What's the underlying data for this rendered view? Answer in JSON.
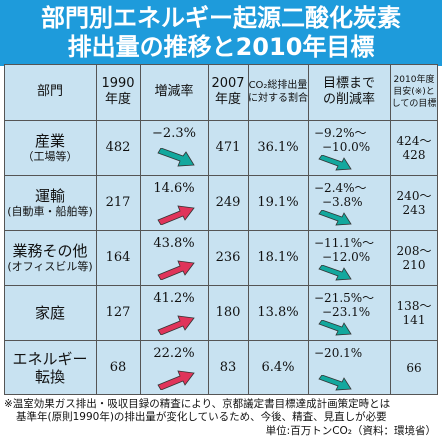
{
  "title": {
    "line1": "部門別エネルギー起源二酸化炭素",
    "line2": "排出量の推移と2010年目標"
  },
  "headers": {
    "sector": "部門",
    "y1990_a": "1990",
    "y1990_b": "年度",
    "change": "増減率",
    "y2007_a": "2007",
    "y2007_b": "年度",
    "share_a": "CO₂総排出量",
    "share_b": "に対する割合",
    "reduction_a": "目標まで",
    "reduction_b": "の削減率",
    "goal_a": "2010年度",
    "goal_b": "目安(※)と",
    "goal_c": "しての目標"
  },
  "rows": [
    {
      "sector": "産業",
      "sub": "（工場等）",
      "v1990": "482",
      "change": "−2.3%",
      "dir": "down",
      "v2007": "471",
      "share": "36.1%",
      "target_a": "−9.2%〜",
      "target_b": "−10.0%",
      "goal_a": "424〜",
      "goal_b": "428"
    },
    {
      "sector": "運輸",
      "sub": "(自動車・船舶等)",
      "v1990": "217",
      "change": "14.6%",
      "dir": "up",
      "v2007": "249",
      "share": "19.1%",
      "target_a": "−2.4%〜",
      "target_b": "−3.8%",
      "goal_a": "240〜",
      "goal_b": "243"
    },
    {
      "sector": "業務その他",
      "sub": "(オフィスビル等)",
      "v1990": "164",
      "change": "43.8%",
      "dir": "up",
      "v2007": "236",
      "share": "18.1%",
      "target_a": "−11.1%〜",
      "target_b": "−12.0%",
      "goal_a": "208〜",
      "goal_b": "210"
    },
    {
      "sector": "家庭",
      "sub": "",
      "v1990": "127",
      "change": "41.2%",
      "dir": "up",
      "v2007": "180",
      "share": "13.8%",
      "target_a": "−21.5%〜",
      "target_b": "−23.1%",
      "goal_a": "138〜",
      "goal_b": "141"
    },
    {
      "sector": "エネルギー",
      "sub": "転換",
      "v1990": "68",
      "change": "22.2%",
      "dir": "up",
      "v2007": "83",
      "share": "6.4%",
      "target_a": "−20.1%",
      "target_b": "",
      "goal_a": "66",
      "goal_b": ""
    }
  ],
  "colors": {
    "header_bg": "#1e9bdb",
    "table_bg": "#c8e2f1",
    "arrow_down": "#13a89e",
    "arrow_up": "#e0345a"
  },
  "footnote_line1": "※温室効果ガス排出・吸収目録の精査により、京都議定書目標達成計画策定時とは",
  "footnote_line2": "基準年(原則1990年)の排出量が変化しているため、今後、精査、見直しが必要",
  "unit": "単位:百万トンCO₂（資料：環境省）"
}
